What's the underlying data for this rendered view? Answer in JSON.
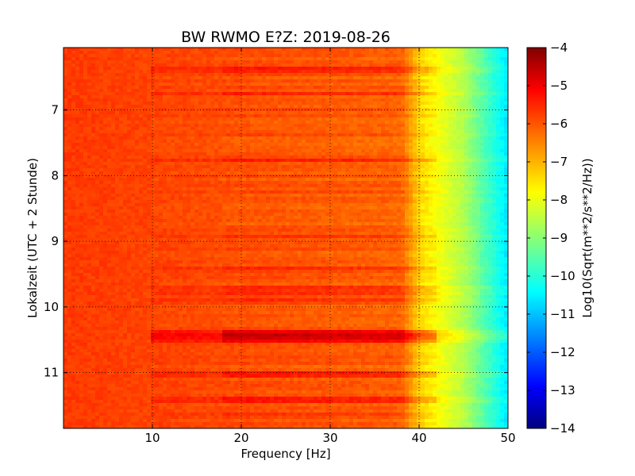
{
  "chart_data": {
    "type": "heatmap",
    "title": "BW RWMO E?Z: 2019-08-26",
    "xlabel": "Frequency [Hz]",
    "ylabel": "Lokalzeit (UTC + 2 Stunde)",
    "xlim": [
      0,
      50
    ],
    "ylim": [
      11.85,
      6.05
    ],
    "y_inverted": true,
    "xticks": [
      10,
      20,
      30,
      40,
      50
    ],
    "yticks": [
      7,
      8,
      9,
      10,
      11
    ],
    "grid": true,
    "grid_style": "dotted",
    "colormap": "jet",
    "colorbar": {
      "label": "Log10(Sqrt(m**2/s**2/Hz))",
      "range": [
        -14,
        -4
      ],
      "ticks": [
        -4,
        -5,
        -6,
        -7,
        -8,
        -9,
        -10,
        -11,
        -12,
        -13,
        -14
      ]
    },
    "typical_value_low_freq": -5.8,
    "typical_value_at_40hz": -7.3,
    "typical_value_at_45hz": -8.5,
    "typical_value_at_50hz": -10.5,
    "strong_band_hours": [
      10.35,
      10.55
    ],
    "strong_band_value": -4.9,
    "colors": {
      "stop0": "#00007f",
      "stop1": "#0000ff",
      "stop2": "#00ffff",
      "stop3": "#ffff00",
      "stop4": "#ff0000",
      "stop5": "#7f0000"
    }
  }
}
